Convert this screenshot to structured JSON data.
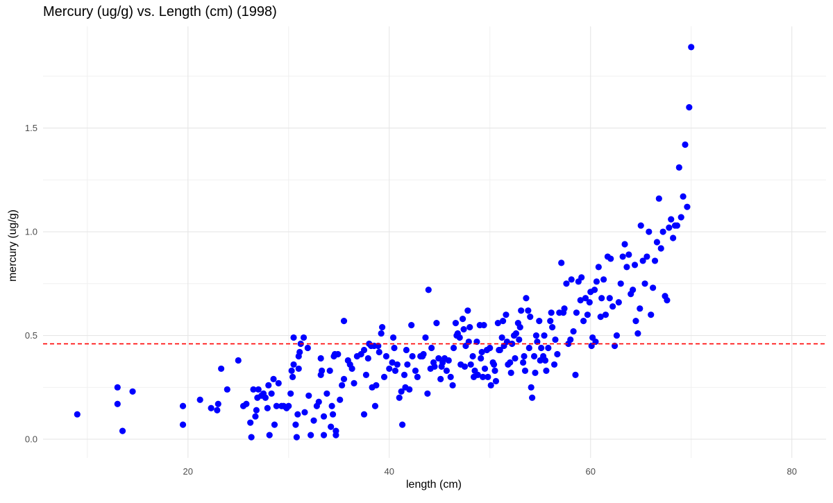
{
  "chart_data": {
    "type": "scatter",
    "title": "Mercury (ug/g) vs. Length (cm) (1998)",
    "xlabel": "length (cm)",
    "ylabel": "mercury (ug/g)",
    "xlim": [
      5.6,
      83.4
    ],
    "ylim": [
      -0.09,
      1.99
    ],
    "xticks": [
      20,
      40,
      60,
      80
    ],
    "yticks": [
      0.0,
      0.5,
      1.0,
      1.5
    ],
    "xtick_labels": [
      "20",
      "40",
      "60",
      "80"
    ],
    "ytick_labels": [
      "0.0",
      "0.5",
      "1.0",
      "1.5"
    ],
    "grid": true,
    "point_color": "#0000ff",
    "reference_line": {
      "y": 0.46,
      "color": "#ff0000",
      "style": "dashed"
    },
    "points": [
      [
        9.0,
        0.12
      ],
      [
        13.0,
        0.25
      ],
      [
        13.0,
        0.17
      ],
      [
        13.5,
        0.04
      ],
      [
        14.5,
        0.23
      ],
      [
        19.5,
        0.16
      ],
      [
        19.5,
        0.07
      ],
      [
        21.2,
        0.19
      ],
      [
        22.3,
        0.15
      ],
      [
        22.9,
        0.14
      ],
      [
        23.0,
        0.17
      ],
      [
        23.3,
        0.34
      ],
      [
        23.9,
        0.24
      ],
      [
        25.0,
        0.38
      ],
      [
        25.5,
        0.16
      ],
      [
        25.8,
        0.17
      ],
      [
        26.2,
        0.08
      ],
      [
        26.3,
        0.01
      ],
      [
        26.5,
        0.24
      ],
      [
        26.7,
        0.11
      ],
      [
        26.8,
        0.14
      ],
      [
        26.9,
        0.2
      ],
      [
        27.0,
        0.24
      ],
      [
        27.3,
        0.21
      ],
      [
        27.5,
        0.22
      ],
      [
        27.7,
        0.2
      ],
      [
        27.9,
        0.15
      ],
      [
        28.0,
        0.26
      ],
      [
        28.1,
        0.02
      ],
      [
        28.3,
        0.22
      ],
      [
        28.5,
        0.29
      ],
      [
        28.6,
        0.07
      ],
      [
        28.8,
        0.16
      ],
      [
        29.0,
        0.27
      ],
      [
        29.3,
        0.16
      ],
      [
        29.5,
        0.16
      ],
      [
        29.8,
        0.15
      ],
      [
        30.0,
        0.16
      ],
      [
        30.2,
        0.22
      ],
      [
        30.3,
        0.33
      ],
      [
        30.4,
        0.3
      ],
      [
        30.5,
        0.36
      ],
      [
        30.5,
        0.49
      ],
      [
        30.7,
        0.07
      ],
      [
        30.8,
        0.01
      ],
      [
        30.9,
        0.12
      ],
      [
        31.0,
        0.34
      ],
      [
        31.0,
        0.4
      ],
      [
        31.1,
        0.42
      ],
      [
        31.2,
        0.46
      ],
      [
        31.5,
        0.49
      ],
      [
        31.6,
        0.13
      ],
      [
        31.9,
        0.44
      ],
      [
        32.0,
        0.21
      ],
      [
        32.2,
        0.02
      ],
      [
        32.5,
        0.09
      ],
      [
        32.8,
        0.16
      ],
      [
        33.0,
        0.18
      ],
      [
        33.2,
        0.31
      ],
      [
        33.2,
        0.39
      ],
      [
        33.3,
        0.33
      ],
      [
        33.5,
        0.02
      ],
      [
        33.5,
        0.11
      ],
      [
        33.8,
        0.22
      ],
      [
        34.1,
        0.33
      ],
      [
        34.2,
        0.06
      ],
      [
        34.3,
        0.16
      ],
      [
        34.4,
        0.12
      ],
      [
        34.5,
        0.4
      ],
      [
        34.6,
        0.41
      ],
      [
        34.7,
        0.02
      ],
      [
        34.7,
        0.04
      ],
      [
        34.9,
        0.41
      ],
      [
        35.1,
        0.19
      ],
      [
        35.3,
        0.26
      ],
      [
        35.5,
        0.29
      ],
      [
        35.5,
        0.57
      ],
      [
        35.9,
        0.38
      ],
      [
        36.1,
        0.36
      ],
      [
        36.3,
        0.34
      ],
      [
        36.5,
        0.27
      ],
      [
        36.8,
        0.4
      ],
      [
        37.2,
        0.41
      ],
      [
        37.5,
        0.43
      ],
      [
        37.5,
        0.12
      ],
      [
        37.7,
        0.31
      ],
      [
        37.9,
        0.39
      ],
      [
        38.0,
        0.46
      ],
      [
        38.2,
        0.45
      ],
      [
        38.3,
        0.25
      ],
      [
        38.5,
        0.45
      ],
      [
        38.6,
        0.16
      ],
      [
        38.7,
        0.26
      ],
      [
        38.9,
        0.45
      ],
      [
        39.0,
        0.42
      ],
      [
        39.2,
        0.51
      ],
      [
        39.3,
        0.54
      ],
      [
        39.5,
        0.3
      ],
      [
        39.7,
        0.4
      ],
      [
        40.0,
        0.34
      ],
      [
        40.3,
        0.37
      ],
      [
        40.4,
        0.49
      ],
      [
        40.5,
        0.44
      ],
      [
        40.6,
        0.33
      ],
      [
        40.8,
        0.36
      ],
      [
        41.0,
        0.2
      ],
      [
        41.2,
        0.23
      ],
      [
        41.3,
        0.07
      ],
      [
        41.5,
        0.31
      ],
      [
        41.6,
        0.25
      ],
      [
        41.7,
        0.43
      ],
      [
        41.8,
        0.36
      ],
      [
        42.0,
        0.24
      ],
      [
        42.2,
        0.55
      ],
      [
        42.3,
        0.4
      ],
      [
        42.6,
        0.33
      ],
      [
        42.8,
        0.3
      ],
      [
        43.1,
        0.4
      ],
      [
        43.3,
        0.4
      ],
      [
        43.4,
        0.41
      ],
      [
        43.6,
        0.49
      ],
      [
        43.8,
        0.22
      ],
      [
        43.9,
        0.72
      ],
      [
        44.1,
        0.34
      ],
      [
        44.2,
        0.44
      ],
      [
        44.4,
        0.37
      ],
      [
        44.5,
        0.35
      ],
      [
        44.7,
        0.56
      ],
      [
        44.9,
        0.39
      ],
      [
        45.1,
        0.29
      ],
      [
        45.2,
        0.35
      ],
      [
        45.3,
        0.37
      ],
      [
        45.5,
        0.39
      ],
      [
        45.7,
        0.33
      ],
      [
        45.9,
        0.38
      ],
      [
        46.1,
        0.3
      ],
      [
        46.3,
        0.26
      ],
      [
        46.4,
        0.44
      ],
      [
        46.6,
        0.56
      ],
      [
        46.7,
        0.5
      ],
      [
        46.8,
        0.51
      ],
      [
        47.0,
        0.49
      ],
      [
        47.1,
        0.36
      ],
      [
        47.3,
        0.58
      ],
      [
        47.4,
        0.53
      ],
      [
        47.5,
        0.35
      ],
      [
        47.6,
        0.45
      ],
      [
        47.8,
        0.62
      ],
      [
        47.9,
        0.47
      ],
      [
        48.0,
        0.54
      ],
      [
        48.1,
        0.36
      ],
      [
        48.3,
        0.4
      ],
      [
        48.4,
        0.3
      ],
      [
        48.5,
        0.33
      ],
      [
        48.7,
        0.47
      ],
      [
        48.8,
        0.31
      ],
      [
        49.0,
        0.55
      ],
      [
        49.1,
        0.39
      ],
      [
        49.2,
        0.42
      ],
      [
        49.3,
        0.3
      ],
      [
        49.4,
        0.55
      ],
      [
        49.5,
        0.34
      ],
      [
        49.7,
        0.43
      ],
      [
        49.8,
        0.3
      ],
      [
        50.0,
        0.44
      ],
      [
        50.1,
        0.26
      ],
      [
        50.3,
        0.37
      ],
      [
        50.4,
        0.36
      ],
      [
        50.5,
        0.33
      ],
      [
        50.6,
        0.28
      ],
      [
        50.8,
        0.56
      ],
      [
        50.9,
        0.43
      ],
      [
        51.0,
        0.43
      ],
      [
        51.2,
        0.49
      ],
      [
        51.3,
        0.57
      ],
      [
        51.4,
        0.45
      ],
      [
        51.6,
        0.6
      ],
      [
        51.7,
        0.47
      ],
      [
        51.8,
        0.36
      ],
      [
        52.0,
        0.37
      ],
      [
        52.1,
        0.32
      ],
      [
        52.2,
        0.46
      ],
      [
        52.4,
        0.5
      ],
      [
        52.5,
        0.39
      ],
      [
        52.6,
        0.51
      ],
      [
        52.8,
        0.56
      ],
      [
        52.9,
        0.48
      ],
      [
        53.0,
        0.54
      ],
      [
        53.1,
        0.62
      ],
      [
        53.3,
        0.37
      ],
      [
        53.4,
        0.4
      ],
      [
        53.5,
        0.33
      ],
      [
        53.6,
        0.68
      ],
      [
        53.8,
        0.62
      ],
      [
        53.9,
        0.44
      ],
      [
        54.0,
        0.59
      ],
      [
        54.1,
        0.25
      ],
      [
        54.2,
        0.2
      ],
      [
        54.4,
        0.4
      ],
      [
        54.5,
        0.32
      ],
      [
        54.6,
        0.5
      ],
      [
        54.7,
        0.47
      ],
      [
        54.9,
        0.57
      ],
      [
        55.0,
        0.38
      ],
      [
        55.1,
        0.44
      ],
      [
        55.3,
        0.4
      ],
      [
        55.4,
        0.5
      ],
      [
        55.5,
        0.38
      ],
      [
        55.6,
        0.33
      ],
      [
        55.8,
        0.44
      ],
      [
        56.0,
        0.57
      ],
      [
        56.1,
        0.61
      ],
      [
        56.2,
        0.54
      ],
      [
        56.4,
        0.36
      ],
      [
        56.5,
        0.48
      ],
      [
        56.7,
        0.41
      ],
      [
        56.9,
        0.61
      ],
      [
        57.1,
        0.85
      ],
      [
        57.3,
        0.61
      ],
      [
        57.4,
        0.63
      ],
      [
        57.6,
        0.75
      ],
      [
        57.8,
        0.46
      ],
      [
        58.0,
        0.48
      ],
      [
        58.1,
        0.77
      ],
      [
        58.3,
        0.52
      ],
      [
        58.5,
        0.31
      ],
      [
        58.6,
        0.61
      ],
      [
        58.8,
        0.76
      ],
      [
        59.0,
        0.67
      ],
      [
        59.1,
        0.78
      ],
      [
        59.3,
        0.57
      ],
      [
        59.5,
        0.68
      ],
      [
        59.7,
        0.6
      ],
      [
        59.9,
        0.66
      ],
      [
        60.0,
        0.71
      ],
      [
        60.1,
        0.45
      ],
      [
        60.2,
        0.49
      ],
      [
        60.4,
        0.72
      ],
      [
        60.5,
        0.47
      ],
      [
        60.6,
        0.76
      ],
      [
        60.8,
        0.83
      ],
      [
        61.0,
        0.59
      ],
      [
        61.1,
        0.68
      ],
      [
        61.3,
        0.77
      ],
      [
        61.5,
        0.6
      ],
      [
        61.7,
        0.88
      ],
      [
        61.9,
        0.68
      ],
      [
        62.0,
        0.87
      ],
      [
        62.2,
        0.64
      ],
      [
        62.4,
        0.45
      ],
      [
        62.6,
        0.5
      ],
      [
        62.8,
        0.66
      ],
      [
        63.0,
        0.75
      ],
      [
        63.2,
        0.88
      ],
      [
        63.4,
        0.94
      ],
      [
        63.6,
        0.83
      ],
      [
        63.8,
        0.89
      ],
      [
        64.0,
        0.7
      ],
      [
        64.2,
        0.72
      ],
      [
        64.4,
        0.84
      ],
      [
        64.5,
        0.57
      ],
      [
        64.7,
        0.51
      ],
      [
        64.9,
        0.63
      ],
      [
        65.0,
        1.03
      ],
      [
        65.2,
        0.86
      ],
      [
        65.4,
        0.75
      ],
      [
        65.6,
        0.88
      ],
      [
        65.8,
        1.0
      ],
      [
        66.0,
        0.6
      ],
      [
        66.2,
        0.73
      ],
      [
        66.4,
        0.86
      ],
      [
        66.6,
        0.95
      ],
      [
        66.8,
        1.16
      ],
      [
        67.0,
        0.92
      ],
      [
        67.2,
        1.0
      ],
      [
        67.4,
        0.69
      ],
      [
        67.6,
        0.67
      ],
      [
        67.8,
        1.02
      ],
      [
        68.0,
        1.06
      ],
      [
        68.2,
        0.97
      ],
      [
        68.4,
        1.03
      ],
      [
        68.6,
        1.03
      ],
      [
        68.8,
        1.31
      ],
      [
        69.0,
        1.07
      ],
      [
        69.2,
        1.17
      ],
      [
        69.4,
        1.42
      ],
      [
        69.6,
        1.12
      ],
      [
        69.8,
        1.6
      ],
      [
        70.0,
        1.89
      ]
    ]
  }
}
